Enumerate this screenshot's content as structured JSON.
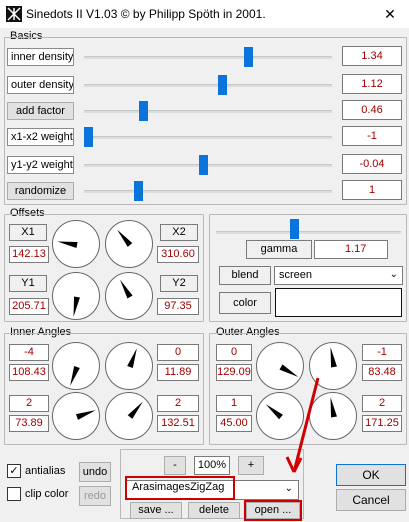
{
  "window": {
    "title": "Sinedots II V1.03 © by Philipp Spöth in 2001.",
    "close_glyph": "✕"
  },
  "basics": {
    "label": "Basics",
    "rows": [
      {
        "label": "inner density",
        "value": "1.34",
        "level": 0.67
      },
      {
        "label": "outer density",
        "value": "1.12",
        "level": 0.56
      },
      {
        "label": "add factor",
        "value": "0.46",
        "level": 0.23
      },
      {
        "label": "x1-x2 weight",
        "value": "-1",
        "level": 0.0
      },
      {
        "label": "y1-y2 weight",
        "value": "-0.04",
        "level": 0.48
      },
      {
        "label": "randomize",
        "value": "1",
        "level": 0.21
      }
    ]
  },
  "offsets": {
    "label": "Offsets",
    "x1": {
      "label": "X1",
      "value": "142.13"
    },
    "x2": {
      "label": "X2",
      "value": "310.60"
    },
    "y1": {
      "label": "Y1",
      "value": "205.71"
    },
    "y2": {
      "label": "Y2",
      "value": "97.35"
    }
  },
  "gamma": {
    "label": "gamma",
    "value": "1.17",
    "level": 0.42
  },
  "blend": {
    "label": "blend",
    "value": "screen"
  },
  "color": {
    "label": "color",
    "swatch": "#ffffff"
  },
  "inner_angles": {
    "label": "Inner Angles",
    "a": {
      "top": "-4",
      "bottom": "108.43"
    },
    "b": {
      "top": "0",
      "bottom": "11.89"
    },
    "c": {
      "top": "2",
      "bottom": "73.89"
    },
    "d": {
      "top": "2",
      "bottom": "132.51"
    }
  },
  "outer_angles": {
    "label": "Outer Angles",
    "a": {
      "top": "0",
      "bottom": "129.09"
    },
    "b": {
      "top": "-1",
      "bottom": "83.48"
    },
    "c": {
      "top": "1",
      "bottom": "45.00"
    },
    "d": {
      "top": "2",
      "bottom": "171.25"
    }
  },
  "bottom": {
    "antialias": "antialias",
    "clip_color": "clip color",
    "undo": "undo",
    "redo": "redo",
    "zoom_minus": "-",
    "zoom_value": "100%",
    "zoom_plus": "+",
    "preset": "ArasimagesZigZag",
    "save": "save ...",
    "delete": "delete",
    "open": "open ...",
    "ok": "OK",
    "cancel": "Cancel"
  },
  "colors": {
    "accent": "#0a74da",
    "value_text": "#a00000",
    "annotation": "#d00000"
  }
}
